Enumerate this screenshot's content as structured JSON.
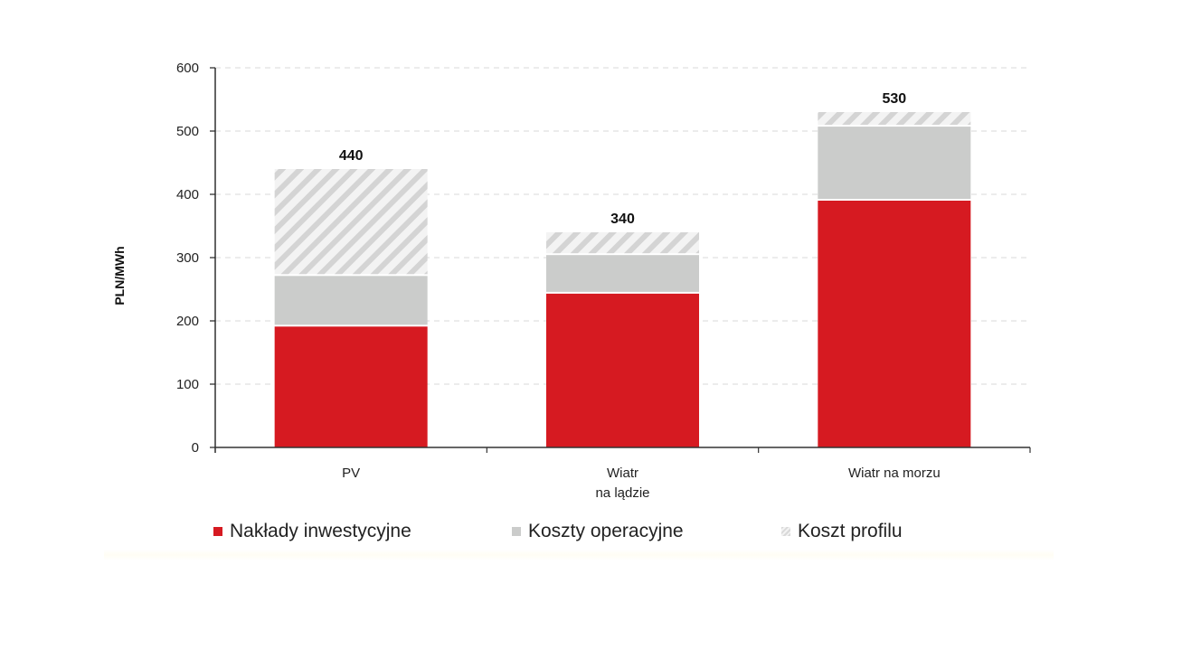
{
  "chart_data": {
    "type": "bar",
    "stacked": true,
    "title": "",
    "xlabel": "",
    "ylabel": "PLN/MWh",
    "ylim": [
      0,
      600
    ],
    "yticks": [
      0,
      100,
      200,
      300,
      400,
      500,
      600
    ],
    "grid": "horizontal dashed",
    "legend_position": "bottom",
    "categories": [
      "PV",
      "Wiatr na lądzie",
      "Wiatr na morzu"
    ],
    "category_labels": [
      [
        "PV"
      ],
      [
        "Wiatr",
        "na lądzie"
      ],
      [
        "Wiatr na morzu"
      ]
    ],
    "series": [
      {
        "name": "Nakłady inwestycyjne",
        "color": "#d61a21",
        "pattern": "solid",
        "values": [
          191,
          243,
          390
        ]
      },
      {
        "name": "Koszty operacyjne",
        "color": "#cbcccb",
        "pattern": "solid",
        "values": [
          80,
          61,
          117
        ]
      },
      {
        "name": "Koszt profilu",
        "color": "#d9d9d9",
        "pattern": "hatched",
        "values": [
          169,
          36,
          23
        ]
      }
    ],
    "totals": [
      440,
      340,
      530
    ],
    "total_labels": [
      "440",
      "340",
      "530"
    ]
  },
  "legend": {
    "items": [
      {
        "label": "Nakłady inwestycyjne"
      },
      {
        "label": "Koszty operacyjne"
      },
      {
        "label": "Koszt profilu"
      }
    ]
  }
}
